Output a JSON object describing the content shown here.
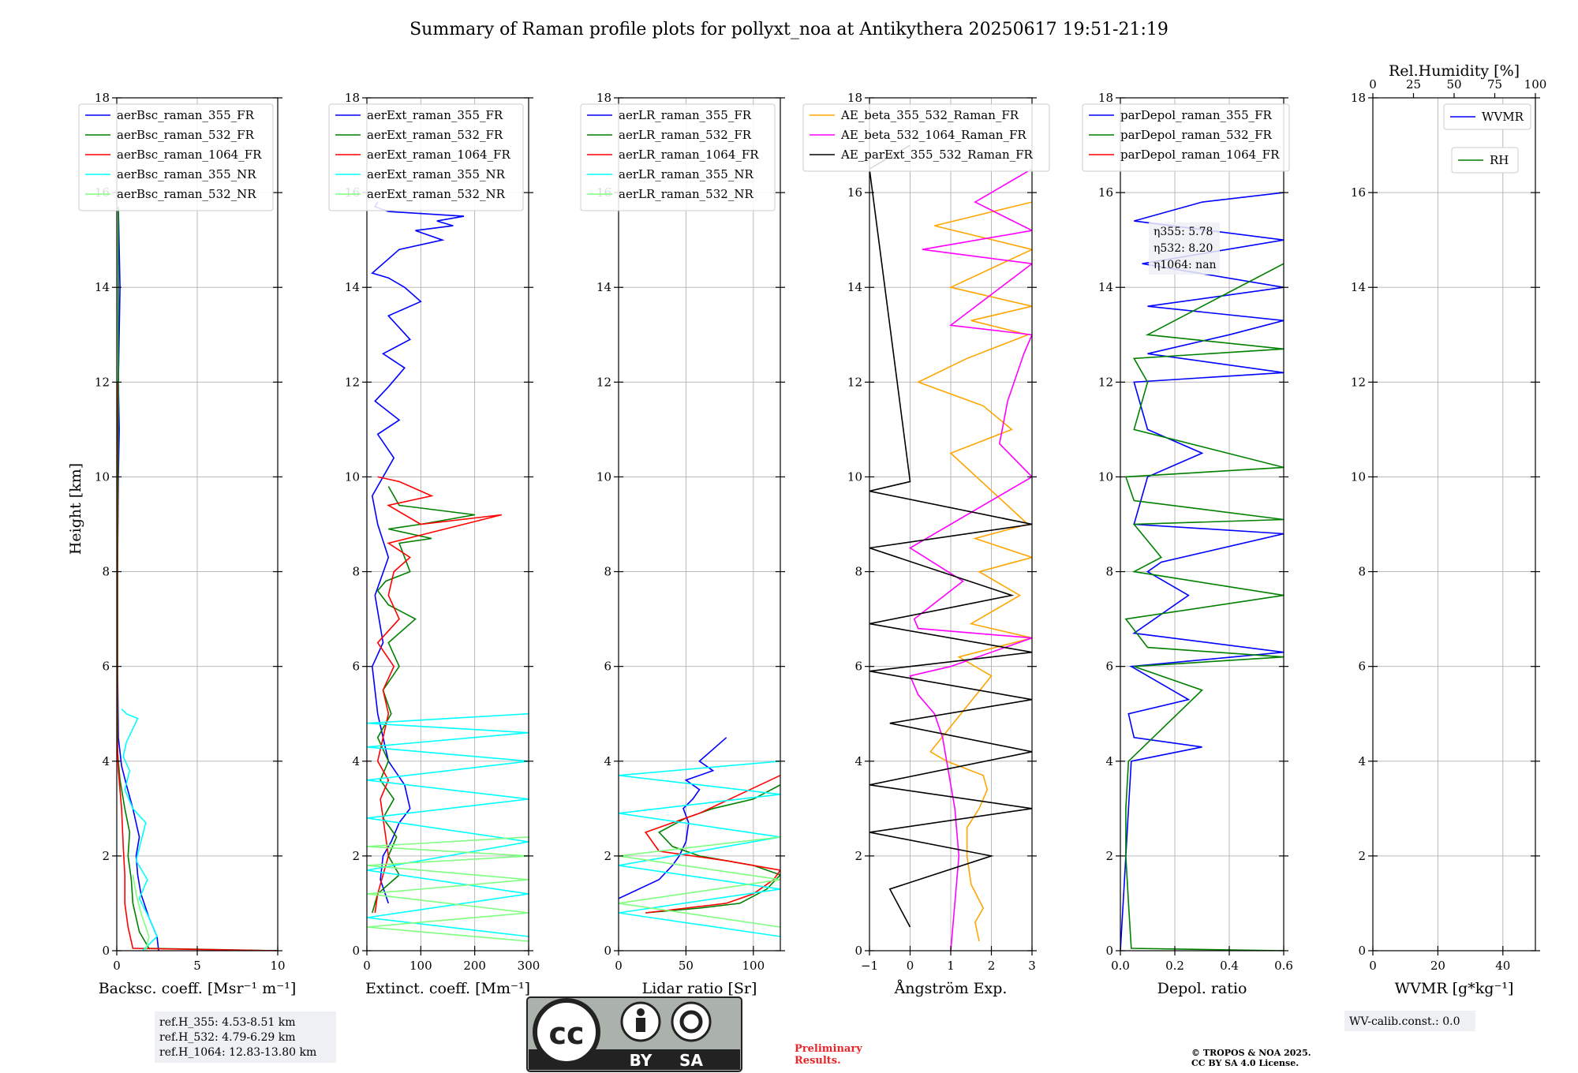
{
  "figure": {
    "title": "Summary of Raman profile plots for pollyxt_noa at Antikythera 20250617 19:51-21:19",
    "ylabel": "Height [km]",
    "refh": [
      "ref.H_355: 4.53-8.51 km",
      "ref.H_532: 4.79-6.29 km",
      "ref.H_1064: 12.83-13.80 km"
    ],
    "eta": [
      "η355: 5.78",
      "η532: 8.20",
      "η1064: nan"
    ],
    "wv_calib": "WV-calib.const.: 0.0",
    "preliminary": [
      "Preliminary",
      "Results."
    ],
    "copyright": [
      "© TROPOS & NOA 2025.",
      "CC BY SA 4.0 License."
    ],
    "license_badge": {
      "cc": "cc",
      "by": "BY",
      "sa": "SA"
    },
    "colors": {
      "blue": "#0000ff",
      "green": "#008000",
      "red": "#ff0000",
      "cyan": "#00ffff",
      "lightgreen": "#7fff7f",
      "orange": "#ffa500",
      "magenta": "#ff00ff",
      "black": "#000000"
    }
  },
  "chart_data": [
    {
      "type": "line",
      "xlabel": "Backsc. coeff. [Msr⁻¹ m⁻¹]",
      "xlim": [
        0,
        10
      ],
      "ylim": [
        0,
        18
      ],
      "xticks": [
        0,
        5,
        10
      ],
      "yticks": [
        0,
        2,
        4,
        6,
        8,
        10,
        12,
        14,
        16,
        18
      ],
      "grid": true,
      "legend": "top-left",
      "series": [
        {
          "name": "aerBsc_raman_355_FR",
          "color": "blue",
          "x": [
            2.6,
            2.5,
            2.0,
            1.5,
            1.3,
            1.2,
            1.4,
            1.0,
            0.6,
            0.3,
            0.1,
            0.05,
            0.05,
            0.1,
            0.15,
            0.1,
            0.2,
            0.1
          ],
          "y": [
            0,
            0.3,
            0.7,
            1.2,
            1.6,
            2.0,
            2.4,
            3.0,
            3.5,
            3.9,
            4.5,
            6,
            8,
            10,
            11,
            12,
            14,
            15.7
          ]
        },
        {
          "name": "aerBsc_raman_532_FR",
          "color": "green",
          "x": [
            10,
            2.0,
            1.4,
            1.0,
            0.9,
            0.7,
            0.8,
            0.5,
            0.2,
            0.05,
            0.05,
            0.1,
            0.1
          ],
          "y": [
            0,
            0.05,
            0.4,
            1.0,
            1.5,
            2.0,
            2.5,
            3.0,
            3.6,
            4.2,
            8,
            12,
            15.7
          ]
        },
        {
          "name": "aerBsc_raman_1064_FR",
          "color": "red",
          "x": [
            10,
            1.0,
            0.7,
            0.5,
            0.5,
            0.4,
            0.3,
            0.1,
            0.02,
            0.02
          ],
          "y": [
            0,
            0.05,
            0.5,
            1.0,
            1.6,
            2.2,
            3.0,
            3.8,
            4.5,
            12
          ]
        },
        {
          "name": "aerBsc_raman_355_NR",
          "color": "cyan",
          "x": [
            1.6,
            2.5,
            2.0,
            1.4,
            1.9,
            1.2,
            1.5,
            1.8,
            1.0,
            0.5,
            0.8,
            0.4,
            0.6,
            1.3,
            0.6,
            0.3
          ],
          "y": [
            0,
            0.3,
            0.7,
            1.1,
            1.5,
            1.9,
            2.3,
            2.7,
            3.0,
            3.4,
            3.8,
            4.1,
            4.4,
            4.9,
            5.0,
            5.1
          ]
        },
        {
          "name": "aerBsc_raman_532_NR",
          "color": "lightgreen",
          "x": [
            1.8,
            2.0,
            1.5,
            1.2,
            1.0
          ],
          "y": [
            0,
            0.3,
            0.8,
            1.2,
            1.6
          ]
        }
      ]
    },
    {
      "type": "line",
      "xlabel": "Extinct. coeff. [Mm⁻¹]",
      "xlim": [
        0,
        300
      ],
      "ylim": [
        0,
        18
      ],
      "xticks": [
        0,
        100,
        200,
        300
      ],
      "yticks": [
        0,
        2,
        4,
        6,
        8,
        10,
        12,
        14,
        16,
        18
      ],
      "grid": true,
      "legend": "top-left",
      "series": [
        {
          "name": "aerExt_raman_355_FR",
          "color": "blue",
          "x": [
            40,
            25,
            30,
            45,
            60,
            80,
            70,
            40,
            20,
            10,
            30,
            15,
            40,
            20,
            10,
            50,
            20,
            60,
            15,
            40,
            70,
            30,
            80,
            40,
            100,
            70,
            40,
            10,
            60,
            140,
            90,
            160,
            130,
            180,
            40,
            15,
            20
          ],
          "y": [
            1.0,
            1.5,
            2.0,
            2.3,
            2.7,
            3.0,
            3.5,
            4.0,
            5.0,
            6.0,
            6.5,
            7.5,
            8.3,
            9.0,
            9.6,
            10.4,
            10.9,
            11.2,
            11.6,
            11.9,
            12.3,
            12.6,
            12.9,
            13.4,
            13.7,
            14.0,
            14.2,
            14.3,
            14.8,
            15.0,
            15.2,
            15.3,
            15.4,
            15.5,
            15.6,
            15.7,
            15.8
          ]
        },
        {
          "name": "aerExt_raman_532_FR",
          "color": "green",
          "x": [
            10,
            20,
            60,
            40,
            55,
            30,
            50,
            25,
            40,
            20,
            45,
            30,
            60,
            40,
            90,
            40,
            20,
            35,
            80,
            60,
            120,
            40,
            100,
            200,
            60,
            40
          ],
          "y": [
            0.8,
            1.2,
            1.6,
            2.0,
            2.4,
            2.8,
            3.2,
            3.6,
            4.0,
            4.5,
            5.0,
            5.5,
            6.0,
            6.5,
            7.0,
            7.3,
            7.6,
            7.8,
            8.0,
            8.6,
            8.7,
            8.9,
            9.0,
            9.2,
            9.4,
            9.8
          ]
        },
        {
          "name": "aerExt_raman_1064_FR",
          "color": "red",
          "x": [
            15,
            20,
            30,
            40,
            35,
            30,
            25,
            40,
            20,
            30,
            40,
            30,
            50,
            20,
            60,
            40,
            50,
            80,
            40,
            250,
            100,
            40,
            120,
            60,
            20
          ],
          "y": [
            0.8,
            1.2,
            1.6,
            2.0,
            2.4,
            2.8,
            3.2,
            3.6,
            4.0,
            4.5,
            5.0,
            5.5,
            6.0,
            6.5,
            7.0,
            7.5,
            8.0,
            8.3,
            8.6,
            9.2,
            9.0,
            9.4,
            9.6,
            9.9,
            10.0
          ]
        },
        {
          "name": "aerExt_raman_355_NR",
          "color": "cyan",
          "x": [
            300,
            0,
            300,
            0,
            300,
            0,
            300,
            0,
            300,
            0,
            300,
            0,
            300
          ],
          "y": [
            0.3,
            0.7,
            1.2,
            1.7,
            2.3,
            2.8,
            3.2,
            3.6,
            4.0,
            4.3,
            4.6,
            4.8,
            5.0
          ]
        },
        {
          "name": "aerExt_raman_532_NR",
          "color": "lightgreen",
          "x": [
            300,
            0,
            300,
            0,
            300,
            0,
            300,
            0,
            300
          ],
          "y": [
            0.2,
            0.5,
            0.8,
            1.2,
            1.5,
            1.8,
            2.0,
            2.2,
            2.4
          ]
        }
      ]
    },
    {
      "type": "line",
      "xlabel": "Lidar ratio [Sr]",
      "xlim": [
        0,
        120
      ],
      "ylim": [
        0,
        18
      ],
      "xticks": [
        0,
        50,
        100
      ],
      "yticks": [
        0,
        2,
        4,
        6,
        8,
        10,
        12,
        14,
        16,
        18
      ],
      "grid": true,
      "legend": "top-left",
      "series": [
        {
          "name": "aerLR_raman_355_FR",
          "color": "blue",
          "x": [
            0,
            30,
            40,
            45,
            50,
            52,
            48,
            55,
            60,
            50,
            70,
            60,
            80
          ],
          "y": [
            1.1,
            1.5,
            1.8,
            2.0,
            2.3,
            2.7,
            3.0,
            3.2,
            3.4,
            3.6,
            3.8,
            4.0,
            4.5
          ]
        },
        {
          "name": "aerLR_raman_532_FR",
          "color": "green",
          "x": [
            20,
            60,
            90,
            110,
            120,
            100,
            80,
            60,
            40,
            30,
            50,
            70,
            100,
            120
          ],
          "y": [
            0.8,
            0.9,
            1.0,
            1.3,
            1.6,
            1.8,
            1.9,
            2.0,
            2.2,
            2.5,
            2.8,
            3.0,
            3.2,
            3.5
          ]
        },
        {
          "name": "aerLR_raman_1064_FR",
          "color": "red",
          "x": [
            20,
            50,
            80,
            100,
            115,
            120,
            100,
            80,
            30,
            20,
            60,
            90,
            120
          ],
          "y": [
            0.8,
            0.9,
            1.0,
            1.2,
            1.5,
            1.7,
            1.8,
            1.9,
            2.1,
            2.5,
            2.9,
            3.3,
            3.7
          ]
        },
        {
          "name": "aerLR_raman_355_NR",
          "color": "cyan",
          "x": [
            120,
            0,
            120,
            0,
            120,
            0,
            120,
            0,
            120
          ],
          "y": [
            0.3,
            0.8,
            1.3,
            1.8,
            2.4,
            2.9,
            3.3,
            3.7,
            4.0
          ]
        },
        {
          "name": "aerLR_raman_532_NR",
          "color": "lightgreen",
          "x": [
            120,
            0,
            120,
            0,
            120
          ],
          "y": [
            0.5,
            1.0,
            1.5,
            2.0,
            2.4
          ]
        }
      ]
    },
    {
      "type": "line",
      "xlabel": "Ångström Exp.",
      "xlim": [
        -1,
        3
      ],
      "ylim": [
        0,
        18
      ],
      "xticks": [
        -1,
        0,
        1,
        2,
        3
      ],
      "yticks": [
        0,
        2,
        4,
        6,
        8,
        10,
        12,
        14,
        16,
        18
      ],
      "grid": true,
      "legend": "top-left",
      "series": [
        {
          "name": "AE_beta_355_532_Raman_FR",
          "color": "orange",
          "x": [
            1.7,
            1.6,
            1.8,
            1.5,
            1.4,
            1.4,
            1.7,
            1.9,
            1.8,
            0.9,
            0.5,
            2.0,
            1.2,
            3.0,
            1.5,
            2.7,
            1.7,
            3.0,
            1.6,
            2.9,
            1.0,
            2.5,
            1.8,
            0.2,
            1.4,
            2.9,
            1.5,
            3.0,
            1.0,
            3.0,
            0.6,
            3.0
          ],
          "y": [
            0.2,
            0.6,
            0.9,
            1.4,
            2.0,
            2.6,
            3.0,
            3.4,
            3.7,
            4.0,
            4.2,
            5.8,
            6.2,
            6.6,
            6.9,
            7.5,
            8.0,
            8.3,
            8.7,
            9.0,
            10.5,
            11.0,
            11.5,
            12.0,
            12.5,
            13.0,
            13.3,
            13.6,
            14.0,
            14.8,
            15.3,
            15.8
          ]
        },
        {
          "name": "AE_beta_532_1064_Raman_FR",
          "color": "magenta",
          "x": [
            1.0,
            1.1,
            1.2,
            1.1,
            1.0,
            0.9,
            0.8,
            0.6,
            0.2,
            0.0,
            1.0,
            3.0,
            0.2,
            0.1,
            1.3,
            0.0,
            3.0,
            2.2,
            2.4,
            2.8,
            3.0,
            1.0,
            3.0,
            0.3,
            3.0,
            1.6,
            3.0
          ],
          "y": [
            0,
            1.0,
            2.0,
            3.0,
            3.5,
            4.0,
            4.5,
            5.0,
            5.4,
            5.8,
            6.0,
            6.6,
            6.8,
            7.0,
            7.8,
            8.5,
            10.0,
            10.7,
            11.6,
            12.6,
            13.0,
            13.2,
            14.5,
            14.8,
            15.2,
            15.8,
            16.5
          ]
        },
        {
          "name": "AE_parExt_355_532_Raman_FR",
          "color": "black",
          "x": [
            0.0,
            -0.5,
            2.0,
            -1.0,
            3.0,
            -1.0,
            3.0,
            -0.5,
            3.0,
            -1.0,
            3.0,
            -1.0,
            2.5,
            -1.0,
            3.0,
            -1.0,
            0.0,
            -1.0,
            0.0
          ],
          "y": [
            0.5,
            1.3,
            2.0,
            2.5,
            3.0,
            3.5,
            4.2,
            4.8,
            5.3,
            5.9,
            6.3,
            6.9,
            7.5,
            8.5,
            9.0,
            9.7,
            9.9,
            16.5,
            17.0
          ]
        }
      ]
    },
    {
      "type": "line",
      "xlabel": "Depol. ratio",
      "xlim": [
        0,
        0.6
      ],
      "ylim": [
        0,
        18
      ],
      "xticks": [
        0.0,
        0.2,
        0.4,
        0.6
      ],
      "yticks": [
        0,
        2,
        4,
        6,
        8,
        10,
        12,
        14,
        16,
        18
      ],
      "grid": true,
      "legend": "top-left",
      "series": [
        {
          "name": "parDepol_raman_355_FR",
          "color": "blue",
          "x": [
            0.0,
            0.01,
            0.02,
            0.03,
            0.04,
            0.3,
            0.05,
            0.03,
            0.25,
            0.04,
            0.6,
            0.05,
            0.25,
            0.1,
            0.15,
            0.6,
            0.05,
            0.1,
            0.3,
            0.1,
            0.05,
            0.6,
            0.1,
            0.4,
            0.6,
            0.1,
            0.6,
            0.08,
            0.6,
            0.05,
            0.3,
            0.6
          ],
          "y": [
            0,
            1.0,
            2.0,
            3.0,
            4.0,
            4.3,
            4.5,
            5.0,
            5.3,
            6.0,
            6.3,
            6.7,
            7.5,
            8.0,
            8.2,
            8.8,
            9.0,
            10.0,
            10.5,
            11.0,
            12.0,
            12.2,
            12.6,
            13.0,
            13.3,
            13.6,
            14.0,
            14.5,
            15.0,
            15.4,
            15.8,
            16.0
          ]
        },
        {
          "name": "parDepol_raman_532_FR",
          "color": "green",
          "x": [
            0.6,
            0.04,
            0.03,
            0.02,
            0.02,
            0.03,
            0.3,
            0.05,
            0.6,
            0.1,
            0.02,
            0.6,
            0.05,
            0.15,
            0.05,
            0.6,
            0.05,
            0.02,
            0.6,
            0.05,
            0.1,
            0.05,
            0.6,
            0.1,
            0.6
          ],
          "y": [
            0,
            0.05,
            1.0,
            2.0,
            3.0,
            4.0,
            5.5,
            6.0,
            6.2,
            6.4,
            7.0,
            7.5,
            8.0,
            8.3,
            9.0,
            9.1,
            9.5,
            10.0,
            10.2,
            11.0,
            12.0,
            12.5,
            12.7,
            13.0,
            14.5
          ]
        },
        {
          "name": "parDepol_raman_1064_FR",
          "color": "red",
          "x": [],
          "y": []
        }
      ]
    },
    {
      "type": "line",
      "xlabel": "WVMR [g*kg⁻¹]",
      "xlim": [
        0,
        50
      ],
      "ylim": [
        0,
        18
      ],
      "xticks": [
        0,
        20,
        40
      ],
      "yticks": [
        0,
        2,
        4,
        6,
        8,
        10,
        12,
        14,
        16,
        18
      ],
      "x2label": "Rel.Humidity [%]",
      "x2lim": [
        0,
        100
      ],
      "x2ticks": [
        0,
        25,
        50,
        75,
        100
      ],
      "grid": true,
      "legend": "top-right",
      "series": [
        {
          "name": "WVMR",
          "color": "blue",
          "x": [],
          "y": []
        },
        {
          "name": "RH",
          "color": "green",
          "x": [],
          "y": []
        }
      ]
    }
  ]
}
